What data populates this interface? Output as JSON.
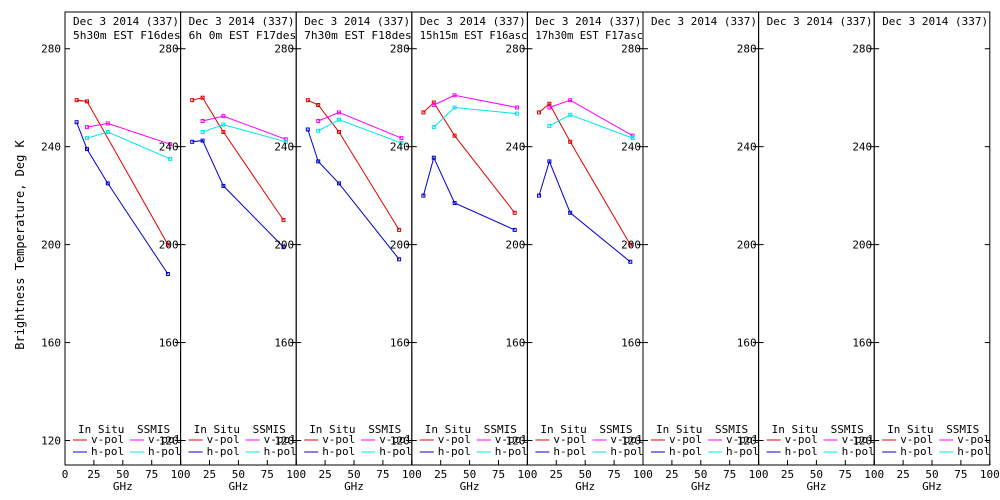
{
  "chart_data": {
    "type": "line",
    "ylabel": "Brightness Temperature, Deg K",
    "xlabel": "GHz",
    "ylim": [
      110,
      295
    ],
    "xlim": [
      0,
      100
    ],
    "yticks": [
      120,
      160,
      200,
      240,
      280
    ],
    "xticks": [
      0,
      25,
      50,
      75,
      100
    ],
    "grid": false,
    "legend": {
      "group_left": "In Situ",
      "group_right": "SSMIS",
      "vpol": "v-pol",
      "hpol": "h-pol"
    },
    "colors": {
      "insitu_v": "#e00000",
      "insitu_h": "#0000cc",
      "ssmis_v": "#ff00ff",
      "ssmis_h": "#00e6e6"
    },
    "panels": [
      {
        "title1": "Dec 3 2014 (337)",
        "title2": "5h30m  EST F16des",
        "series": [
          {
            "key": "insitu_v",
            "x": [
              10,
              19,
              37,
              89
            ],
            "y": [
              259,
              258.5,
              null,
              200
            ]
          },
          {
            "key": "insitu_h",
            "x": [
              10,
              19,
              37,
              89
            ],
            "y": [
              250,
              239,
              225,
              188
            ]
          },
          {
            "key": "ssmis_v",
            "x": [
              19,
              37,
              91
            ],
            "y": [
              248,
              249.5,
              241
            ]
          },
          {
            "key": "ssmis_h",
            "x": [
              19,
              37,
              91
            ],
            "y": [
              243.5,
              246,
              235
            ]
          }
        ]
      },
      {
        "title1": "Dec 3 2014 (337)",
        "title2": "6h 0m  EST F17des",
        "series": [
          {
            "key": "insitu_v",
            "x": [
              10,
              19,
              37,
              89
            ],
            "y": [
              259,
              260,
              246,
              210
            ]
          },
          {
            "key": "insitu_h",
            "x": [
              10,
              19,
              37,
              89
            ],
            "y": [
              242,
              242.5,
              224,
              199
            ]
          },
          {
            "key": "ssmis_v",
            "x": [
              19,
              37,
              91
            ],
            "y": [
              250.5,
              252.5,
              243
            ]
          },
          {
            "key": "ssmis_h",
            "x": [
              19,
              37,
              91
            ],
            "y": [
              246,
              249,
              242
            ]
          }
        ]
      },
      {
        "title1": "Dec 3 2014 (337)",
        "title2": "7h30m  EST F18des",
        "series": [
          {
            "key": "insitu_v",
            "x": [
              10,
              19,
              37,
              89
            ],
            "y": [
              259,
              257,
              246,
              206
            ]
          },
          {
            "key": "insitu_h",
            "x": [
              10,
              19,
              37,
              89
            ],
            "y": [
              247,
              234,
              225,
              194
            ]
          },
          {
            "key": "ssmis_v",
            "x": [
              19,
              37,
              91
            ],
            "y": [
              250.5,
              254,
              243.5
            ]
          },
          {
            "key": "ssmis_h",
            "x": [
              19,
              37,
              91
            ],
            "y": [
              246.5,
              251,
              241.5
            ]
          }
        ]
      },
      {
        "title1": "Dec 3 2014 (337)",
        "title2": "15h15m  EST F16asc",
        "series": [
          {
            "key": "insitu_v",
            "x": [
              10,
              19,
              37,
              89
            ],
            "y": [
              254,
              258,
              244.5,
              213
            ]
          },
          {
            "key": "insitu_h",
            "x": [
              10,
              19,
              37,
              89
            ],
            "y": [
              220,
              235.5,
              217,
              206
            ]
          },
          {
            "key": "ssmis_v",
            "x": [
              19,
              37,
              91
            ],
            "y": [
              257,
              261,
              256
            ]
          },
          {
            "key": "ssmis_h",
            "x": [
              19,
              37,
              91
            ],
            "y": [
              248,
              256,
              253.5
            ]
          }
        ]
      },
      {
        "title1": "Dec 3 2014 (337)",
        "title2": "17h30m  EST F17asc",
        "series": [
          {
            "key": "insitu_v",
            "x": [
              10,
              19,
              37,
              89
            ],
            "y": [
              254,
              257.5,
              242,
              200
            ]
          },
          {
            "key": "insitu_h",
            "x": [
              10,
              19,
              37,
              89
            ],
            "y": [
              220,
              234,
              213,
              193
            ]
          },
          {
            "key": "ssmis_v",
            "x": [
              19,
              37,
              91
            ],
            "y": [
              256,
              259,
              244.5
            ]
          },
          {
            "key": "ssmis_h",
            "x": [
              19,
              37,
              91
            ],
            "y": [
              248.5,
              253,
              243.5
            ]
          }
        ]
      },
      {
        "title1": "Dec 3 2014 (337)",
        "title2": "",
        "series": []
      },
      {
        "title1": "Dec 3 2014 (337)",
        "title2": "",
        "series": []
      },
      {
        "title1": "Dec 3 2014 (337)",
        "title2": "",
        "series": []
      }
    ]
  }
}
